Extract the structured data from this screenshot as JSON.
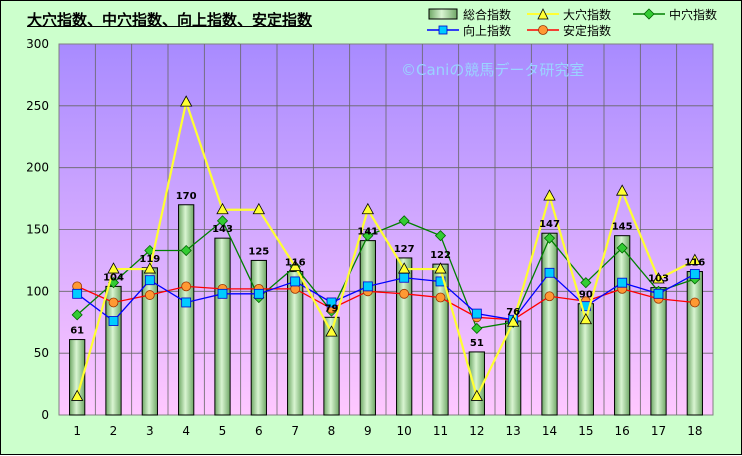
{
  "chart_data": {
    "type": "bar+line",
    "title": "大穴指数、中穴指数、向上指数、安定指数",
    "watermark": "©Caniの競馬データ研究室",
    "categories": [
      "1",
      "2",
      "3",
      "4",
      "5",
      "6",
      "7",
      "8",
      "9",
      "10",
      "11",
      "12",
      "13",
      "14",
      "15",
      "16",
      "17",
      "18"
    ],
    "ylim": [
      0,
      300
    ],
    "yticks": [
      0,
      50,
      100,
      150,
      200,
      250,
      300
    ],
    "grid": true,
    "legend_position": "top-right",
    "colors": {
      "plot_bg_top": "#a88bff",
      "plot_bg_bottom": "#ffc8ff",
      "bar_fill": "#b7e5b0",
      "bar_stroke": "#000000",
      "oana": "#ffff33",
      "chuuana": "#008000",
      "koujou": "#0000ff",
      "antei": "#ff0000",
      "antei_marker": "#ff9933",
      "koujou_marker": "#00ccff"
    },
    "series": [
      {
        "name": "総合指数",
        "kind": "bar",
        "labels": true,
        "values": [
          61,
          104,
          119,
          170,
          143,
          125,
          116,
          79,
          141,
          127,
          122,
          51,
          76,
          147,
          90,
          145,
          103,
          116
        ]
      },
      {
        "name": "大穴指数",
        "kind": "line",
        "marker": "triangle",
        "values": [
          15,
          118,
          118,
          253,
          166,
          166,
          120,
          67,
          166,
          118,
          118,
          15,
          75,
          177,
          77,
          181,
          110,
          125
        ]
      },
      {
        "name": "中穴指数",
        "kind": "line",
        "marker": "diamond",
        "values": [
          81,
          107,
          133,
          133,
          157,
          95,
          120,
          84,
          145,
          157,
          145,
          70,
          75,
          143,
          107,
          135,
          100,
          110
        ]
      },
      {
        "name": "向上指数",
        "kind": "line",
        "marker": "square",
        "values": [
          98,
          76,
          109,
          91,
          98,
          98,
          108,
          91,
          104,
          111,
          108,
          82,
          77,
          115,
          88,
          107,
          98,
          114
        ]
      },
      {
        "name": "安定指数",
        "kind": "line",
        "marker": "circle",
        "values": [
          104,
          91,
          97,
          104,
          102,
          102,
          102,
          86,
          100,
          98,
          95,
          79,
          77,
          96,
          92,
          102,
          94,
          91
        ]
      }
    ]
  }
}
